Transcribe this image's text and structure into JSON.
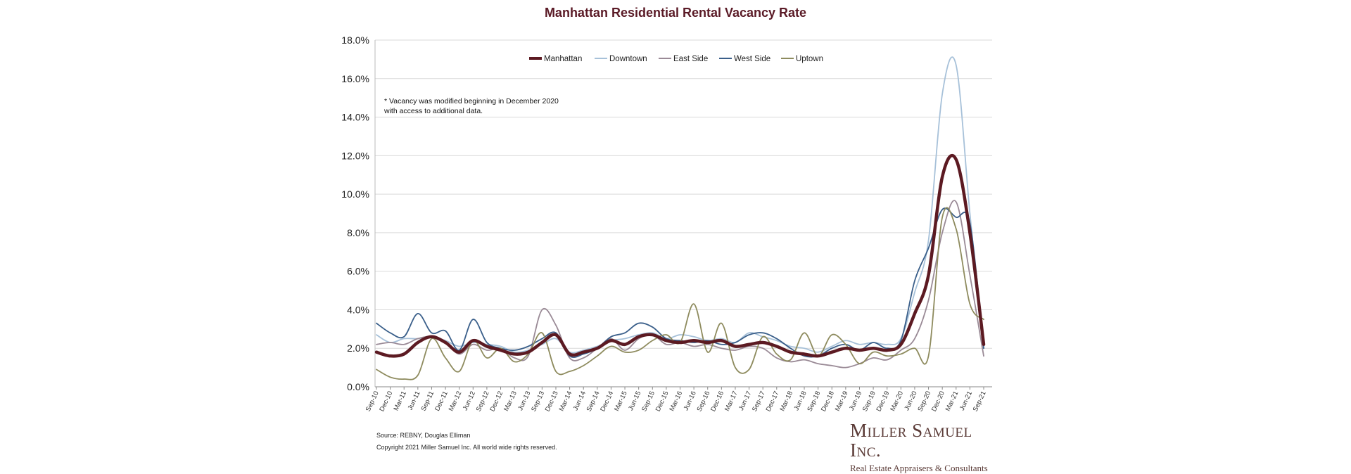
{
  "chart_data": {
    "type": "line",
    "title": "Manhattan Residential Rental Vacancy Rate",
    "xlabel": "",
    "ylabel": "",
    "ylim": [
      0,
      18
    ],
    "y_ticks": [
      "0.0%",
      "2.0%",
      "4.0%",
      "6.0%",
      "8.0%",
      "10.0%",
      "12.0%",
      "14.0%",
      "16.0%",
      "18.0%"
    ],
    "grid": "horizontal",
    "legend_position": "top-center",
    "x": [
      "Sep-10",
      "Dec-10",
      "Mar-11",
      "Jun-11",
      "Sep-11",
      "Dec-11",
      "Mar-12",
      "Jun-12",
      "Sep-12",
      "Dec-12",
      "Mar-13",
      "Jun-13",
      "Sep-13",
      "Dec-13",
      "Mar-14",
      "Jun-14",
      "Sep-14",
      "Dec-14",
      "Mar-15",
      "Jun-15",
      "Sep-15",
      "Dec-15",
      "Mar-16",
      "Jun-16",
      "Sep-16",
      "Dec-16",
      "Mar-17",
      "Jun-17",
      "Sep-17",
      "Dec-17",
      "Mar-18",
      "Jun-18",
      "Sep-18",
      "Dec-18",
      "Mar-19",
      "Jun-19",
      "Sep-19",
      "Dec-19",
      "Mar-20",
      "Jun-20",
      "Sep-20",
      "Dec-20",
      "Mar-21",
      "Jun-21",
      "Sep-21"
    ],
    "x_end_label": "",
    "series": [
      {
        "name": "Manhattan",
        "color": "#5c1a22",
        "width": 4.5,
        "values": [
          1.8,
          1.6,
          1.7,
          2.3,
          2.6,
          2.3,
          1.8,
          2.4,
          2.1,
          1.9,
          1.7,
          1.8,
          2.3,
          2.7,
          1.7,
          1.8,
          2.0,
          2.4,
          2.2,
          2.6,
          2.7,
          2.4,
          2.3,
          2.4,
          2.3,
          2.4,
          2.1,
          2.2,
          2.3,
          2.1,
          1.8,
          1.7,
          1.6,
          1.8,
          2.0,
          1.9,
          2.0,
          1.9,
          2.2,
          3.8,
          5.8,
          10.9,
          11.8,
          8.0,
          2.2
        ]
      },
      {
        "name": "Downtown",
        "color": "#a7c1d9",
        "width": 1.8,
        "values": [
          2.7,
          2.3,
          2.5,
          2.5,
          2.6,
          2.4,
          2.1,
          2.3,
          2.2,
          2.1,
          1.8,
          1.9,
          2.2,
          2.5,
          1.8,
          1.9,
          2.1,
          2.4,
          2.5,
          2.7,
          2.8,
          2.5,
          2.7,
          2.6,
          2.4,
          2.5,
          2.3,
          2.8,
          2.6,
          2.4,
          2.1,
          2.0,
          1.8,
          2.1,
          2.4,
          2.2,
          2.3,
          2.2,
          2.5,
          4.9,
          7.6,
          15.2,
          16.7,
          9.0,
          2.0
        ]
      },
      {
        "name": "East Side",
        "color": "#9a8a96",
        "width": 1.8,
        "values": [
          2.2,
          2.3,
          2.2,
          2.5,
          2.6,
          2.3,
          1.7,
          2.2,
          1.9,
          2.0,
          1.5,
          1.6,
          4.0,
          3.2,
          1.5,
          1.5,
          2.0,
          2.5,
          1.9,
          2.5,
          2.7,
          2.2,
          2.3,
          2.1,
          2.2,
          2.0,
          1.9,
          2.1,
          2.0,
          1.5,
          1.3,
          1.4,
          1.2,
          1.1,
          1.0,
          1.2,
          1.5,
          1.4,
          1.9,
          2.5,
          4.5,
          8.0,
          9.6,
          5.8,
          1.6
        ]
      },
      {
        "name": "West Side",
        "color": "#3a5f8a",
        "width": 1.8,
        "values": [
          3.3,
          2.8,
          2.6,
          3.8,
          2.8,
          2.9,
          1.9,
          3.5,
          2.3,
          2.0,
          1.9,
          2.1,
          2.5,
          2.8,
          1.6,
          1.7,
          2.0,
          2.6,
          2.8,
          3.3,
          3.1,
          2.5,
          2.4,
          2.3,
          2.4,
          2.2,
          2.3,
          2.7,
          2.8,
          2.5,
          2.0,
          1.6,
          1.6,
          2.0,
          2.2,
          1.9,
          2.3,
          2.0,
          2.4,
          5.5,
          7.2,
          9.2,
          8.8,
          8.5,
          2.0
        ]
      },
      {
        "name": "Uptown",
        "color": "#8e8b5e",
        "width": 1.8,
        "values": [
          0.9,
          0.5,
          0.4,
          0.6,
          2.5,
          1.5,
          0.8,
          2.4,
          1.5,
          2.0,
          1.3,
          1.7,
          2.8,
          0.8,
          0.8,
          1.1,
          1.6,
          2.1,
          1.8,
          1.9,
          2.4,
          2.7,
          2.3,
          4.3,
          1.8,
          3.3,
          1.0,
          0.9,
          2.6,
          1.7,
          1.4,
          2.8,
          1.6,
          2.7,
          2.2,
          1.2,
          1.8,
          1.6,
          1.7,
          2.0,
          1.6,
          8.8,
          8.2,
          4.3,
          3.5
        ]
      }
    ]
  },
  "annotation": {
    "line1": "* Vacancy was modified beginning in December 2020",
    "line2": "with access to additional data."
  },
  "footer": {
    "source": "Source: REBNY, Douglas Elliman",
    "copyright": "Copyright 2021 Miller Samuel Inc.  All world wide rights reserved."
  },
  "logo": {
    "name": "Miller Samuel Inc.",
    "tagline": "Real Estate Appraisers & Consultants"
  }
}
